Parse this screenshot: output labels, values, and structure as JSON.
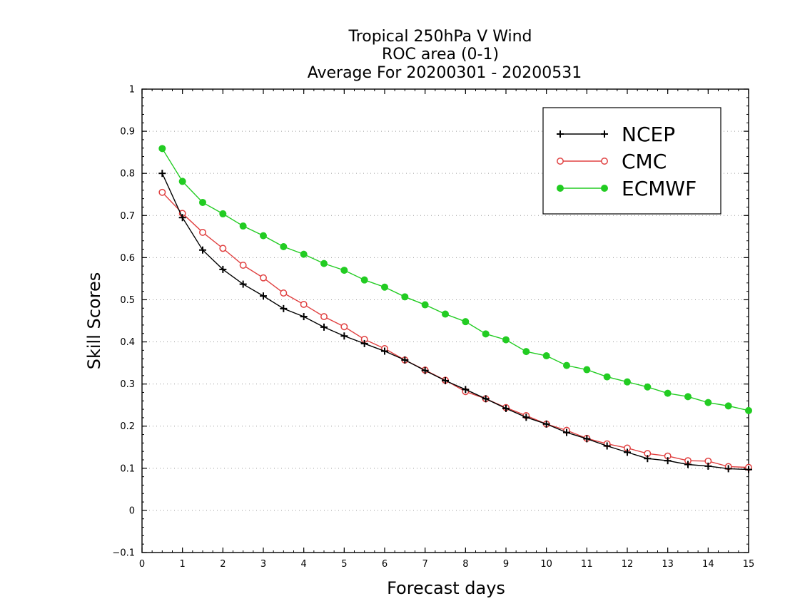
{
  "chart_data": {
    "type": "line",
    "title_lines": [
      "Tropical 250hPa V Wind",
      "ROC area (0-1)",
      "Average For 20200301 - 20200531"
    ],
    "xlabel": "Forecast days",
    "ylabel": "Skill Scores",
    "xlim": [
      0,
      15
    ],
    "ylim": [
      -0.1,
      1
    ],
    "x_ticks": [
      0,
      1,
      2,
      3,
      4,
      5,
      6,
      7,
      8,
      9,
      10,
      11,
      12,
      13,
      14,
      15
    ],
    "y_ticks": [
      -0.1,
      0,
      0.1,
      0.2,
      0.3,
      0.4,
      0.5,
      0.6,
      0.7,
      0.8,
      0.9,
      1
    ],
    "x_tick_labels": [
      "0",
      "1",
      "2",
      "3",
      "4",
      "5",
      "6",
      "7",
      "8",
      "9",
      "10",
      "11",
      "12",
      "13",
      "14",
      "15"
    ],
    "y_tick_labels": [
      "−0.1",
      "0",
      "0.1",
      "0.2",
      "0.3",
      "0.4",
      "0.5",
      "0.6",
      "0.7",
      "0.8",
      "0.9",
      "1"
    ],
    "grid": "horizontal dotted",
    "legend_position": "top-right",
    "x": [
      0.5,
      1,
      1.5,
      2,
      2.5,
      3,
      3.5,
      4,
      4.5,
      5,
      5.5,
      6,
      6.5,
      7,
      7.5,
      8,
      8.5,
      9,
      9.5,
      10,
      10.5,
      11,
      11.5,
      12,
      12.5,
      13,
      13.5,
      14,
      14.5,
      15
    ],
    "series": [
      {
        "name": "NCEP",
        "color": "#000000",
        "marker": "plus",
        "values": [
          0.8,
          0.695,
          0.618,
          0.572,
          0.537,
          0.509,
          0.479,
          0.46,
          0.435,
          0.414,
          0.396,
          0.378,
          0.357,
          0.332,
          0.308,
          0.287,
          0.265,
          0.242,
          0.221,
          0.205,
          0.185,
          0.17,
          0.153,
          0.138,
          0.123,
          0.118,
          0.109,
          0.105,
          0.099,
          0.097
        ]
      },
      {
        "name": "CMC",
        "color": "#e04040",
        "marker": "open-circle",
        "values": [
          0.755,
          0.705,
          0.66,
          0.622,
          0.582,
          0.552,
          0.516,
          0.489,
          0.46,
          0.436,
          0.406,
          0.384,
          0.357,
          0.333,
          0.309,
          0.282,
          0.265,
          0.244,
          0.225,
          0.205,
          0.19,
          0.171,
          0.158,
          0.148,
          0.135,
          0.129,
          0.118,
          0.117,
          0.104,
          0.102
        ]
      },
      {
        "name": "ECMWF",
        "color": "#22cc22",
        "marker": "filled-circle",
        "values": [
          0.859,
          0.781,
          0.731,
          0.704,
          0.675,
          0.652,
          0.626,
          0.608,
          0.586,
          0.57,
          0.547,
          0.53,
          0.507,
          0.488,
          0.466,
          0.448,
          0.419,
          0.405,
          0.377,
          0.367,
          0.344,
          0.334,
          0.317,
          0.305,
          0.293,
          0.278,
          0.27,
          0.256,
          0.248,
          0.237
        ]
      }
    ]
  }
}
